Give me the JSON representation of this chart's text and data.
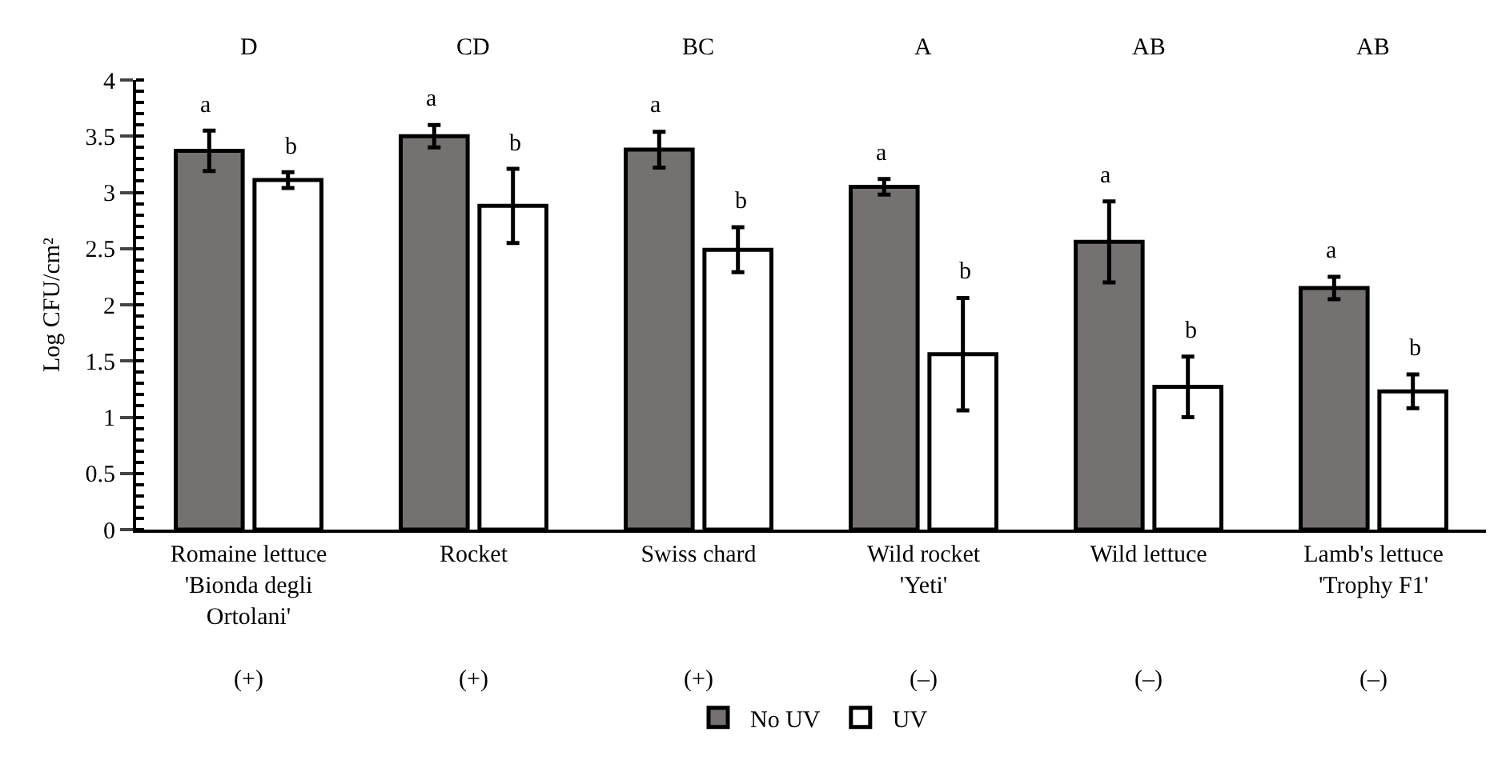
{
  "chart_data": {
    "type": "bar",
    "ylabel": "Log CFU/cm²",
    "categories": [
      "Romaine lettuce\n'Bionda degli\nOrtolani'\n(+)",
      "Rocket\n(+)",
      "Swiss chard\n(+)",
      "Wild rocket\n'Yeti'\n(–)",
      "Wild lettuce\n(–)",
      "Lamb's lettuce\n'Trophy F1'\n(–)"
    ],
    "series": [
      {
        "name": "No UV",
        "color": "#767171",
        "values": [
          3.37,
          3.5,
          3.38,
          3.05,
          2.56,
          2.15
        ],
        "errors": [
          0.18,
          0.1,
          0.16,
          0.07,
          0.36,
          0.1
        ],
        "value_labels": [
          "a",
          "a",
          "a",
          "a",
          "a",
          "a"
        ]
      },
      {
        "name": "UV",
        "color": "#ffffff",
        "values": [
          3.11,
          2.88,
          2.49,
          1.56,
          1.27,
          1.23
        ],
        "errors": [
          0.07,
          0.33,
          0.2,
          0.5,
          0.27,
          0.15
        ],
        "value_labels": [
          "b",
          "b",
          "b",
          "b",
          "b",
          "b"
        ]
      }
    ],
    "annotations": [
      "D",
      "CD",
      "BC",
      "A",
      "AB",
      "AB"
    ],
    "ylim": [
      0,
      4
    ],
    "yticks": [
      0,
      0.5,
      1,
      1.5,
      2,
      2.5,
      3,
      3.5,
      4
    ],
    "grid": false,
    "legend": "bottom"
  }
}
